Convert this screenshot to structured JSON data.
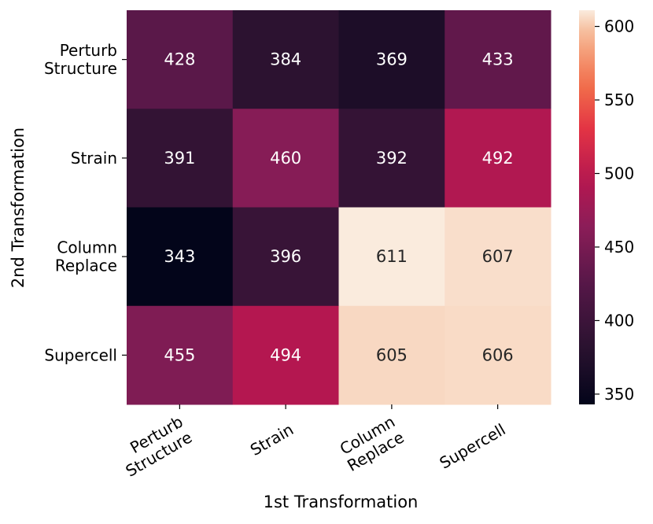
{
  "chart_data": {
    "type": "heatmap",
    "title": "",
    "xlabel": "1st Transformation",
    "ylabel": "2nd Transformation",
    "x_categories": [
      [
        "Perturb",
        "Structure"
      ],
      [
        "Strain"
      ],
      [
        "Column",
        "Replace"
      ],
      [
        "Supercell"
      ]
    ],
    "y_categories": [
      [
        "Perturb",
        "Structure"
      ],
      [
        "Strain"
      ],
      [
        "Column",
        "Replace"
      ],
      [
        "Supercell"
      ]
    ],
    "values": [
      [
        428,
        384,
        369,
        433
      ],
      [
        391,
        460,
        392,
        492
      ],
      [
        343,
        396,
        611,
        607
      ],
      [
        455,
        494,
        605,
        606
      ]
    ],
    "colormap": "rocket",
    "vmin": 343,
    "vmax": 611,
    "colorbar_ticks": [
      350,
      400,
      450,
      500,
      550,
      600
    ],
    "annotation_colors": {
      "dark_cell": "#ffffff",
      "light_cell": "#262626"
    }
  }
}
